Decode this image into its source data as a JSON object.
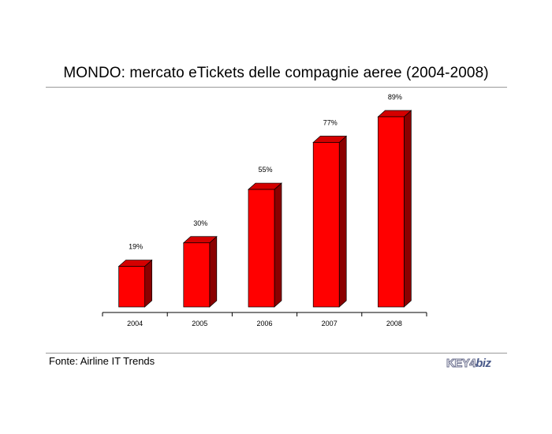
{
  "title": "MONDO: mercato eTickets delle compagnie aeree (2004-2008)",
  "source": "Fonte: Airline IT Trends",
  "logo": {
    "text_key": "KEY",
    "text_num": "4",
    "text_biz": "biz"
  },
  "colors": {
    "bar_front": "#ff0000",
    "bar_top": "#d40000",
    "bar_side": "#8b0000",
    "axis": "#000000",
    "rule": "#9a9a9a"
  },
  "chart_data": {
    "type": "bar",
    "title": "MONDO: mercato eTickets delle compagnie aeree (2004-2008)",
    "categories": [
      "2004",
      "2005",
      "2006",
      "2007",
      "2008"
    ],
    "values": [
      19,
      30,
      55,
      77,
      89
    ],
    "data_labels": [
      "19%",
      "30%",
      "55%",
      "77%",
      "89%"
    ],
    "unit": "%",
    "ylim": [
      0,
      89
    ],
    "grid": false,
    "style": "3d"
  }
}
